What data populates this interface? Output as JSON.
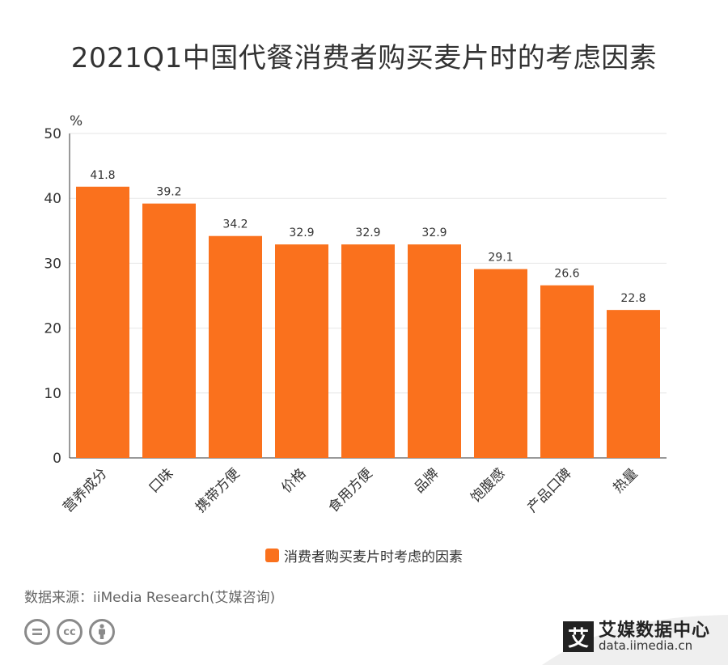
{
  "title": "2021Q1中国代餐消费者购买麦片时的考虑因素",
  "chart_data": {
    "type": "bar",
    "title": "2021Q1中国代餐消费者购买麦片时的考虑因素",
    "ylabel": "%",
    "xlabel": "",
    "ylim": [
      0,
      50
    ],
    "yticks": [
      0,
      10,
      20,
      30,
      40,
      50
    ],
    "categories": [
      "营养成分",
      "口味",
      "携带方便",
      "价格",
      "食用方便",
      "品牌",
      "饱腹感",
      "产品口碑",
      "热量"
    ],
    "series": [
      {
        "name": "消费者购买麦片时考虑的因素",
        "values": [
          41.8,
          39.2,
          34.2,
          32.9,
          32.9,
          32.9,
          29.1,
          26.6,
          22.8
        ],
        "color": "#fa711d"
      }
    ],
    "grid": true,
    "legend_position": "bottom"
  },
  "source": "数据来源：iiMedia Research(艾媒咨询)",
  "brand": {
    "logo_char": "艾",
    "name": "艾媒数据中心",
    "url": "data.iimedia.cn"
  },
  "license_icons": [
    "cc-nd-icon",
    "cc-icon",
    "cc-by-icon"
  ],
  "colors": {
    "bar": "#fa711d",
    "axis": "#333333",
    "grid": "#e6e6e6"
  }
}
